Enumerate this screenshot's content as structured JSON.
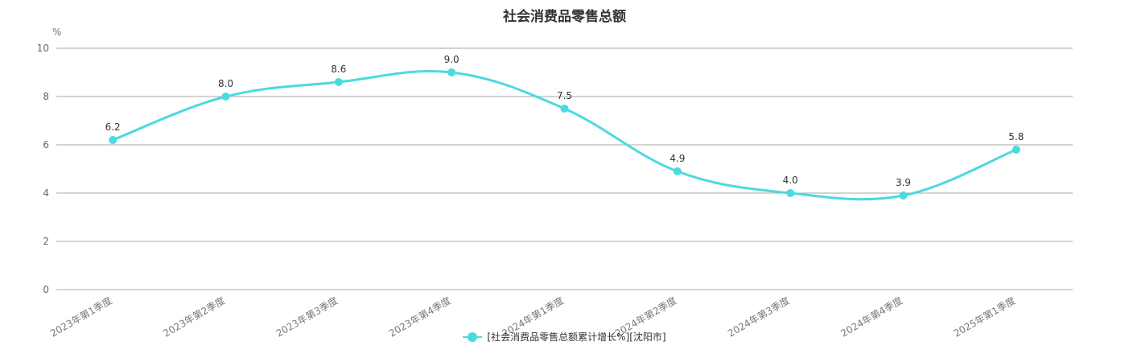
{
  "chart_data": {
    "type": "line",
    "title": "社会消费品零售总额",
    "ylabel": "%",
    "xlabel": "",
    "ylim": [
      0,
      10
    ],
    "yticks": [
      0,
      2,
      4,
      6,
      8,
      10
    ],
    "grid": true,
    "legend_position": "bottom-center",
    "categories": [
      "2023年第1季度",
      "2023年第2季度",
      "2023年第3季度",
      "2023年第4季度",
      "2024年第1季度",
      "2024年第2季度",
      "2024年第3季度",
      "2024年第4季度",
      "2025年第1季度"
    ],
    "series": [
      {
        "name": "[社会消费品零售总额累计增长%][沈阳市]",
        "values": [
          6.2,
          8.0,
          8.6,
          9.0,
          7.5,
          4.9,
          4.0,
          3.9,
          5.8
        ],
        "labels": [
          "6.2",
          "8.0",
          "8.6",
          "9.0",
          "7.5",
          "4.9",
          "4.0",
          "3.9",
          "5.8"
        ],
        "color": "#4dd9e0"
      }
    ],
    "colors": {
      "series": "#4dd9e0",
      "grid": "#aaaaaa",
      "axis": "#999999"
    }
  }
}
